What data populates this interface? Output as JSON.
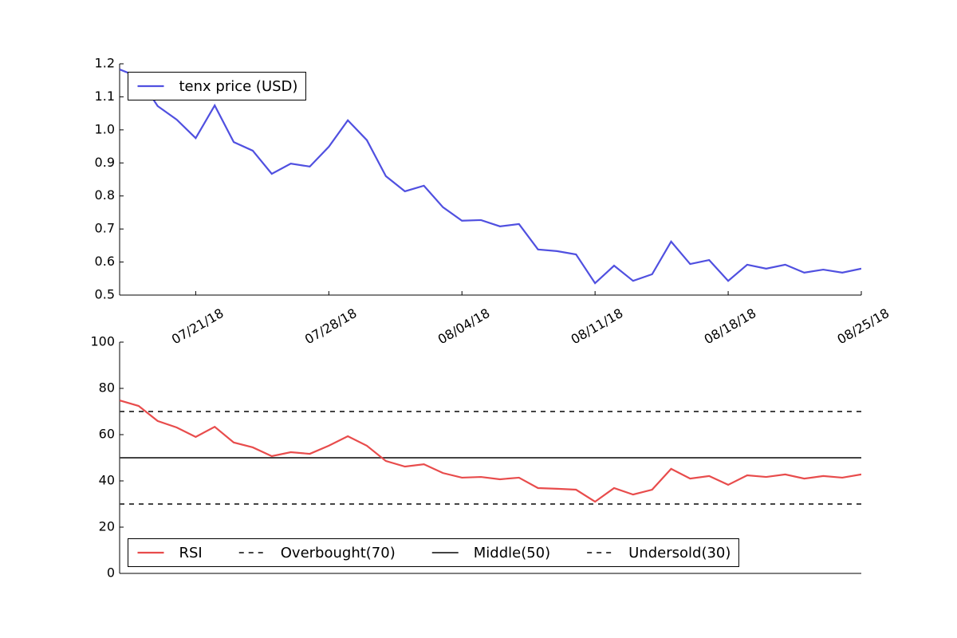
{
  "chart_data": [
    {
      "type": "line",
      "x": [
        "2018-07-17",
        "2018-07-18",
        "2018-07-19",
        "2018-07-20",
        "2018-07-21",
        "2018-07-22",
        "2018-07-23",
        "2018-07-24",
        "2018-07-25",
        "2018-07-26",
        "2018-07-27",
        "2018-07-28",
        "2018-07-29",
        "2018-07-30",
        "2018-07-31",
        "2018-08-01",
        "2018-08-02",
        "2018-08-03",
        "2018-08-04",
        "2018-08-05",
        "2018-08-06",
        "2018-08-07",
        "2018-08-08",
        "2018-08-09",
        "2018-08-10",
        "2018-08-11",
        "2018-08-12",
        "2018-08-13",
        "2018-08-14",
        "2018-08-15",
        "2018-08-16",
        "2018-08-17",
        "2018-08-18",
        "2018-08-19",
        "2018-08-20",
        "2018-08-21",
        "2018-08-22",
        "2018-08-23",
        "2018-08-24",
        "2018-08-25"
      ],
      "series": [
        {
          "name": "tenx price (USD)",
          "color": "#5050e0",
          "values": [
            1.183,
            1.16,
            1.072,
            1.031,
            0.975,
            1.074,
            0.963,
            0.937,
            0.867,
            0.898,
            0.889,
            0.949,
            1.029,
            0.969,
            0.86,
            0.814,
            0.831,
            0.766,
            0.725,
            0.727,
            0.708,
            0.715,
            0.638,
            0.633,
            0.623,
            0.536,
            0.589,
            0.543,
            0.563,
            0.662,
            0.594,
            0.606,
            0.543,
            0.592,
            0.58,
            0.592,
            0.568,
            0.577,
            0.568,
            0.58
          ]
        }
      ],
      "xlim": [
        "2018-07-17",
        "2018-08-25"
      ],
      "xticks": [
        {
          "value": "2018-07-21",
          "label": "07/21/18"
        },
        {
          "value": "2018-07-28",
          "label": "07/28/18"
        },
        {
          "value": "2018-08-04",
          "label": "08/04/18"
        },
        {
          "value": "2018-08-11",
          "label": "08/11/18"
        },
        {
          "value": "2018-08-18",
          "label": "08/18/18"
        },
        {
          "value": "2018-08-25",
          "label": "08/25/18"
        }
      ],
      "ylim": [
        0.5,
        1.2
      ],
      "yticks": [
        0.5,
        0.6,
        0.7,
        0.8,
        0.9,
        {
          "value": 1,
          "label": "1.0"
        },
        1.1,
        1.2
      ],
      "legend": "upper left"
    },
    {
      "type": "line",
      "x": [
        "2018-07-17",
        "2018-07-18",
        "2018-07-19",
        "2018-07-20",
        "2018-07-21",
        "2018-07-22",
        "2018-07-23",
        "2018-07-24",
        "2018-07-25",
        "2018-07-26",
        "2018-07-27",
        "2018-07-28",
        "2018-07-29",
        "2018-07-30",
        "2018-07-31",
        "2018-08-01",
        "2018-08-02",
        "2018-08-03",
        "2018-08-04",
        "2018-08-05",
        "2018-08-06",
        "2018-08-07",
        "2018-08-08",
        "2018-08-09",
        "2018-08-10",
        "2018-08-11",
        "2018-08-12",
        "2018-08-13",
        "2018-08-14",
        "2018-08-15",
        "2018-08-16",
        "2018-08-17",
        "2018-08-18",
        "2018-08-19",
        "2018-08-20",
        "2018-08-21",
        "2018-08-22",
        "2018-08-23",
        "2018-08-24",
        "2018-08-25"
      ],
      "series": [
        {
          "name": "RSI",
          "color": "#e84c4c",
          "values": [
            74.8,
            72.4,
            65.9,
            63.1,
            59.0,
            63.4,
            56.6,
            54.5,
            50.7,
            52.4,
            51.7,
            55.2,
            59.3,
            55.2,
            48.6,
            46.2,
            47.2,
            43.4,
            41.4,
            41.7,
            40.7,
            41.4,
            36.9,
            36.6,
            36.2,
            31.0,
            36.9,
            34.1,
            36.2,
            45.2,
            41.0,
            42.1,
            38.3,
            42.4,
            41.7,
            42.8,
            41.0,
            42.1,
            41.4,
            42.8
          ]
        }
      ],
      "reference_lines": [
        {
          "name": "Overbought(70)",
          "value": 70,
          "color": "#444444",
          "dashed": true
        },
        {
          "name": "Middle(50)",
          "value": 50,
          "color": "#444444",
          "dashed": false
        },
        {
          "name": "Undersold(30)",
          "value": 30,
          "color": "#444444",
          "dashed": true
        }
      ],
      "xlim": [
        "2018-07-17",
        "2018-08-25"
      ],
      "ylim": [
        0,
        100
      ],
      "yticks": [
        0,
        20,
        40,
        60,
        80,
        100
      ],
      "legend": "lower left"
    }
  ]
}
